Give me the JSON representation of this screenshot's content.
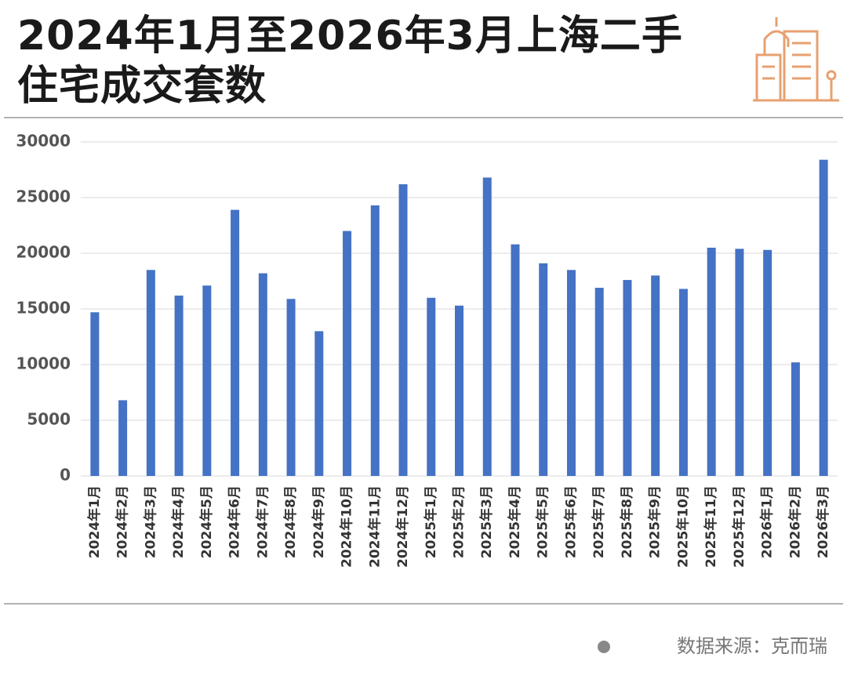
{
  "chart_data": {
    "type": "bar",
    "title": "2024年1月至2026年3月上海二手住宅成交套数",
    "categories": [
      "2024年1月",
      "2024年2月",
      "2024年3月",
      "2024年4月",
      "2024年5月",
      "2024年6月",
      "2024年7月",
      "2024年8月",
      "2024年9月",
      "2024年10月",
      "2024年11月",
      "2024年12月",
      "2025年1月",
      "2025年2月",
      "2025年3月",
      "2025年4月",
      "2025年5月",
      "2025年6月",
      "2025年7月",
      "2025年8月",
      "2025年9月",
      "2025年10月",
      "2025年11月",
      "2025年12月",
      "2026年1月",
      "2026年2月",
      "2026年3月"
    ],
    "values": [
      14700,
      6800,
      18500,
      16200,
      17100,
      23900,
      18200,
      15900,
      13000,
      22000,
      24300,
      26200,
      16000,
      15300,
      26800,
      20800,
      19100,
      18500,
      16900,
      17600,
      18000,
      16800,
      20500,
      20400,
      20300,
      10200,
      28400
    ],
    "color": "#4472c4",
    "ylim": [
      0,
      30000
    ],
    "yticks": [
      0,
      5000,
      10000,
      15000,
      20000,
      25000,
      30000
    ],
    "grid": true
  },
  "source": "数据来源：克而瑞"
}
